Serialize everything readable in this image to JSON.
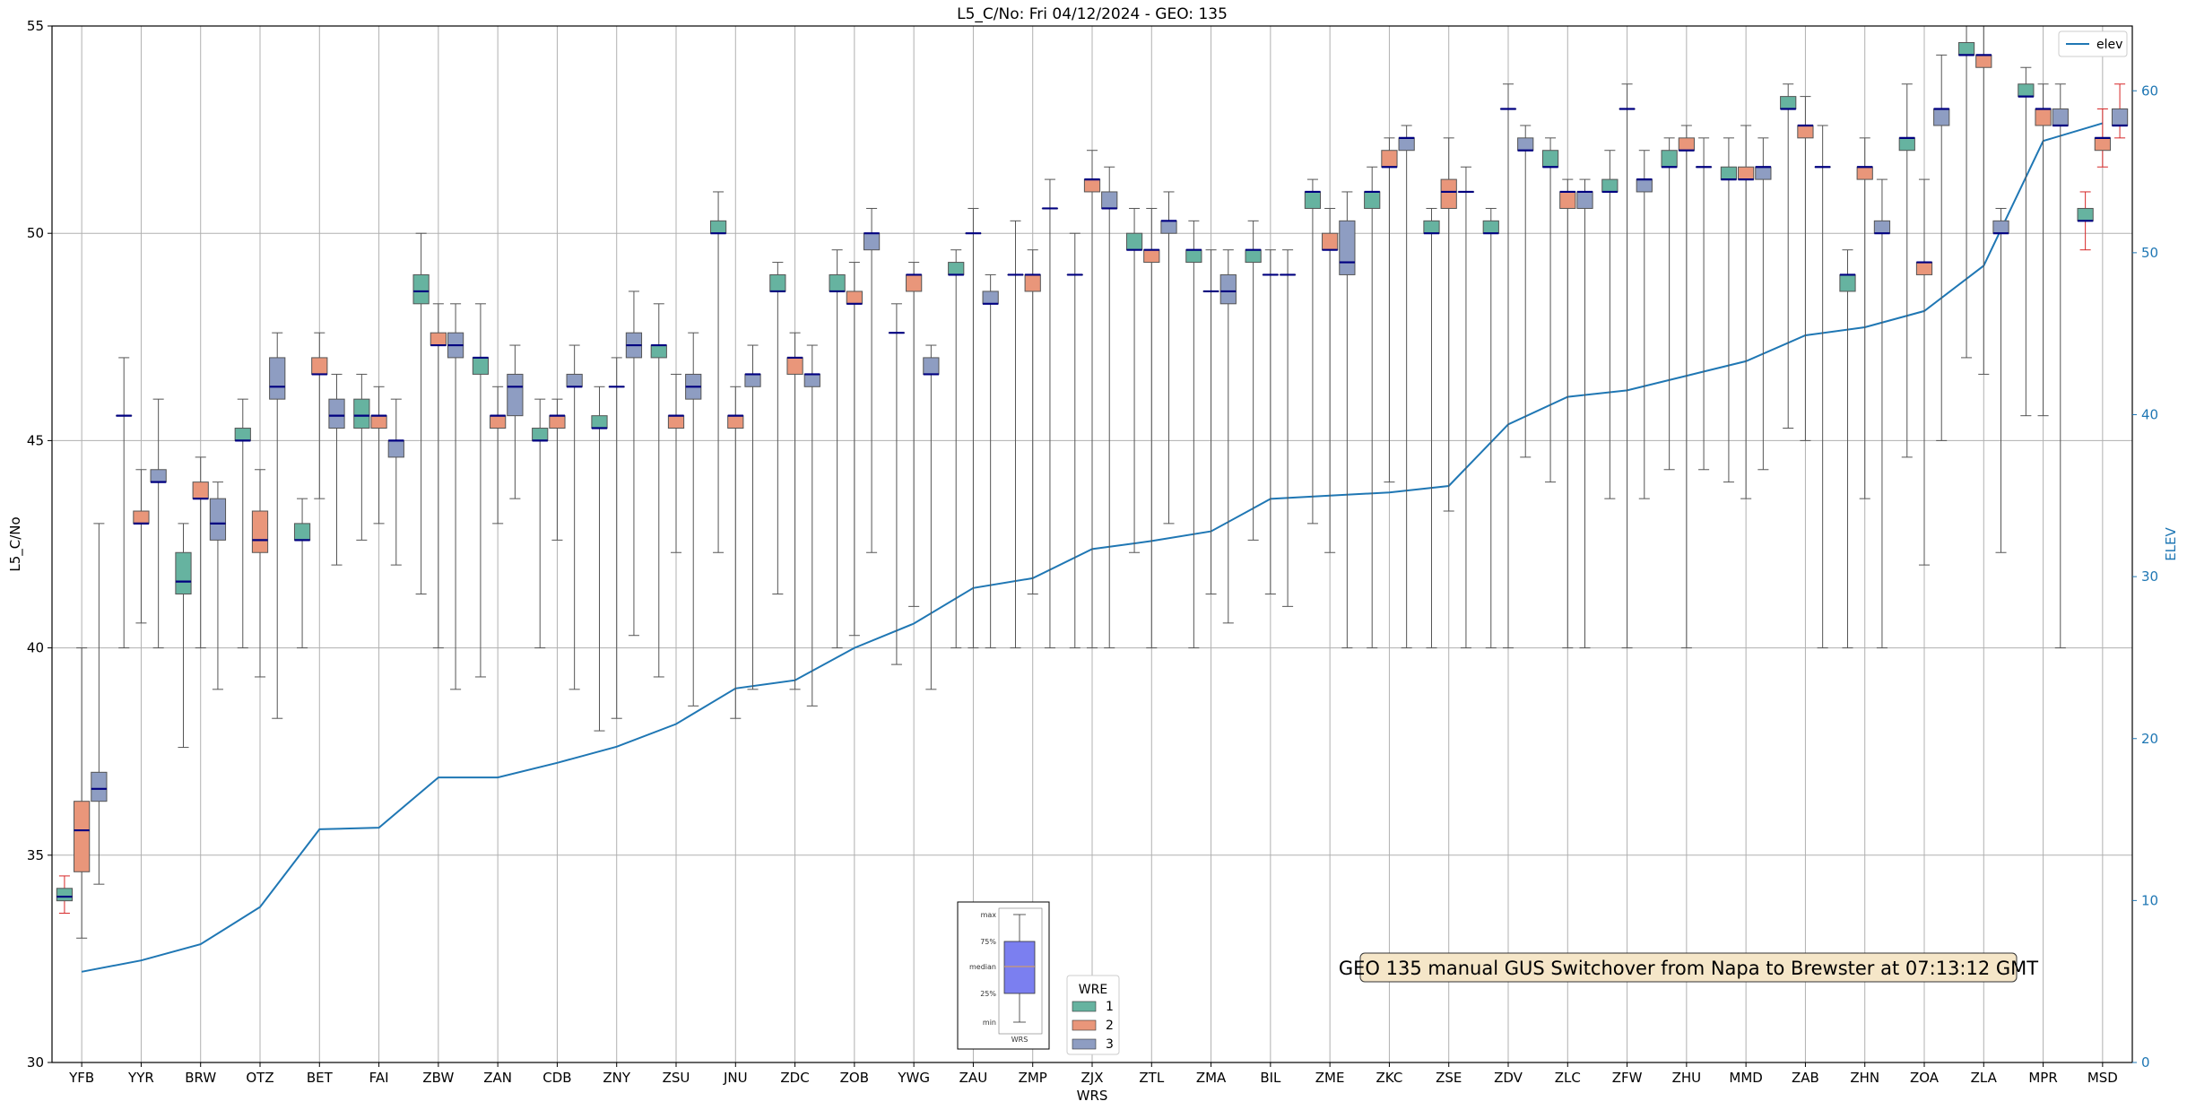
{
  "chart_data": {
    "type": "box",
    "title": "L5_C/No: Fri 04/12/2024 - GEO: 135",
    "xlabel": "WRS",
    "ylabel": "L5_C/No",
    "y2label": "ELEV",
    "ylim": [
      30,
      55
    ],
    "y2lim": [
      0,
      64
    ],
    "yticks": [
      30,
      35,
      40,
      45,
      50,
      55
    ],
    "y2ticks": [
      0,
      10,
      20,
      30,
      40,
      50,
      60
    ],
    "grid": true,
    "categories": [
      "YFB",
      "YYR",
      "BRW",
      "OTZ",
      "BET",
      "FAI",
      "ZBW",
      "ZAN",
      "CDB",
      "ZNY",
      "ZSU",
      "JNU",
      "ZDC",
      "ZOB",
      "YWG",
      "ZAU",
      "ZMP",
      "ZJX",
      "ZTL",
      "ZMA",
      "BIL",
      "ZME",
      "ZKC",
      "ZSE",
      "ZDV",
      "ZLC",
      "ZFW",
      "ZHU",
      "MMD",
      "ZAB",
      "ZHN",
      "ZOA",
      "ZLA",
      "MPR",
      "MSD"
    ],
    "wre_colors": {
      "1": "#66b3a0",
      "2": "#e9967a",
      "3": "#8e9dc2"
    },
    "boxes": [
      {
        "cat": "YFB",
        "wre": 1,
        "min": 33.6,
        "q1": 33.9,
        "median": 34.0,
        "q3": 34.2,
        "max": 34.5,
        "red_whisker": true
      },
      {
        "cat": "YFB",
        "wre": 2,
        "min": 33.0,
        "q1": 34.6,
        "median": 35.6,
        "q3": 36.3,
        "max": 40.0
      },
      {
        "cat": "YFB",
        "wre": 3,
        "min": 34.3,
        "q1": 36.3,
        "median": 36.6,
        "q3": 37.0,
        "max": 43.0
      },
      {
        "cat": "YYR",
        "wre": 1,
        "min": 40.0,
        "q1": 45.6,
        "median": 45.6,
        "q3": 45.6,
        "max": 47.0
      },
      {
        "cat": "YYR",
        "wre": 2,
        "min": 40.6,
        "q1": 43.0,
        "median": 43.0,
        "q3": 43.3,
        "max": 44.3
      },
      {
        "cat": "YYR",
        "wre": 3,
        "min": 40.0,
        "q1": 44.0,
        "median": 44.0,
        "q3": 44.3,
        "max": 46.0
      },
      {
        "cat": "BRW",
        "wre": 1,
        "min": 37.6,
        "q1": 41.3,
        "median": 41.6,
        "q3": 42.3,
        "max": 43.0
      },
      {
        "cat": "BRW",
        "wre": 2,
        "min": 40.0,
        "q1": 43.6,
        "median": 43.6,
        "q3": 44.0,
        "max": 44.6
      },
      {
        "cat": "BRW",
        "wre": 3,
        "min": 39.0,
        "q1": 42.6,
        "median": 43.0,
        "q3": 43.6,
        "max": 44.0
      },
      {
        "cat": "OTZ",
        "wre": 1,
        "min": 40.0,
        "q1": 45.0,
        "median": 45.0,
        "q3": 45.3,
        "max": 46.0
      },
      {
        "cat": "OTZ",
        "wre": 2,
        "min": 39.3,
        "q1": 42.3,
        "median": 42.6,
        "q3": 43.3,
        "max": 44.3
      },
      {
        "cat": "OTZ",
        "wre": 3,
        "min": 38.3,
        "q1": 46.0,
        "median": 46.3,
        "q3": 47.0,
        "max": 47.6
      },
      {
        "cat": "BET",
        "wre": 1,
        "min": 40.0,
        "q1": 42.6,
        "median": 42.6,
        "q3": 43.0,
        "max": 43.6
      },
      {
        "cat": "BET",
        "wre": 2,
        "min": 43.6,
        "q1": 46.6,
        "median": 46.6,
        "q3": 47.0,
        "max": 47.6
      },
      {
        "cat": "BET",
        "wre": 3,
        "min": 42.0,
        "q1": 45.3,
        "median": 45.6,
        "q3": 46.0,
        "max": 46.6
      },
      {
        "cat": "FAI",
        "wre": 1,
        "min": 42.6,
        "q1": 45.3,
        "median": 45.6,
        "q3": 46.0,
        "max": 46.6
      },
      {
        "cat": "FAI",
        "wre": 2,
        "min": 43.0,
        "q1": 45.3,
        "median": 45.6,
        "q3": 45.6,
        "max": 46.3
      },
      {
        "cat": "FAI",
        "wre": 3,
        "min": 42.0,
        "q1": 44.6,
        "median": 45.0,
        "q3": 45.0,
        "max": 46.0
      },
      {
        "cat": "ZBW",
        "wre": 1,
        "min": 41.3,
        "q1": 48.3,
        "median": 48.6,
        "q3": 49.0,
        "max": 50.0
      },
      {
        "cat": "ZBW",
        "wre": 2,
        "min": 40.0,
        "q1": 47.3,
        "median": 47.3,
        "q3": 47.6,
        "max": 48.3
      },
      {
        "cat": "ZBW",
        "wre": 3,
        "min": 39.0,
        "q1": 47.0,
        "median": 47.3,
        "q3": 47.6,
        "max": 48.3
      },
      {
        "cat": "ZAN",
        "wre": 1,
        "min": 39.3,
        "q1": 46.6,
        "median": 47.0,
        "q3": 47.0,
        "max": 48.3
      },
      {
        "cat": "ZAN",
        "wre": 2,
        "min": 43.0,
        "q1": 45.3,
        "median": 45.6,
        "q3": 45.6,
        "max": 46.3
      },
      {
        "cat": "ZAN",
        "wre": 3,
        "min": 43.6,
        "q1": 45.6,
        "median": 46.3,
        "q3": 46.6,
        "max": 47.3
      },
      {
        "cat": "CDB",
        "wre": 1,
        "min": 40.0,
        "q1": 45.0,
        "median": 45.0,
        "q3": 45.3,
        "max": 46.0
      },
      {
        "cat": "CDB",
        "wre": 2,
        "min": 42.6,
        "q1": 45.3,
        "median": 45.6,
        "q3": 45.6,
        "max": 46.0
      },
      {
        "cat": "CDB",
        "wre": 3,
        "min": 39.0,
        "q1": 46.3,
        "median": 46.3,
        "q3": 46.6,
        "max": 47.3
      },
      {
        "cat": "ZNY",
        "wre": 1,
        "min": 38.0,
        "q1": 45.3,
        "median": 45.3,
        "q3": 45.6,
        "max": 46.3
      },
      {
        "cat": "ZNY",
        "wre": 2,
        "min": 38.3,
        "q1": 46.3,
        "median": 46.3,
        "q3": 46.3,
        "max": 47.0
      },
      {
        "cat": "ZNY",
        "wre": 3,
        "min": 40.3,
        "q1": 47.0,
        "median": 47.3,
        "q3": 47.6,
        "max": 48.6
      },
      {
        "cat": "ZSU",
        "wre": 1,
        "min": 39.3,
        "q1": 47.0,
        "median": 47.3,
        "q3": 47.3,
        "max": 48.3
      },
      {
        "cat": "ZSU",
        "wre": 2,
        "min": 42.3,
        "q1": 45.3,
        "median": 45.6,
        "q3": 45.6,
        "max": 46.6
      },
      {
        "cat": "ZSU",
        "wre": 3,
        "min": 38.6,
        "q1": 46.0,
        "median": 46.3,
        "q3": 46.6,
        "max": 47.6
      },
      {
        "cat": "JNU",
        "wre": 1,
        "min": 42.3,
        "q1": 50.0,
        "median": 50.0,
        "q3": 50.3,
        "max": 51.0
      },
      {
        "cat": "JNU",
        "wre": 2,
        "min": 38.3,
        "q1": 45.3,
        "median": 45.6,
        "q3": 45.6,
        "max": 46.3
      },
      {
        "cat": "JNU",
        "wre": 3,
        "min": 39.0,
        "q1": 46.3,
        "median": 46.6,
        "q3": 46.6,
        "max": 47.3
      },
      {
        "cat": "ZDC",
        "wre": 1,
        "min": 41.3,
        "q1": 48.6,
        "median": 48.6,
        "q3": 49.0,
        "max": 49.3
      },
      {
        "cat": "ZDC",
        "wre": 2,
        "min": 39.0,
        "q1": 46.6,
        "median": 47.0,
        "q3": 47.0,
        "max": 47.6
      },
      {
        "cat": "ZDC",
        "wre": 3,
        "min": 38.6,
        "q1": 46.3,
        "median": 46.6,
        "q3": 46.6,
        "max": 47.3
      },
      {
        "cat": "ZOB",
        "wre": 1,
        "min": 40.0,
        "q1": 48.6,
        "median": 48.6,
        "q3": 49.0,
        "max": 49.6
      },
      {
        "cat": "ZOB",
        "wre": 2,
        "min": 40.3,
        "q1": 48.3,
        "median": 48.3,
        "q3": 48.6,
        "max": 49.3
      },
      {
        "cat": "ZOB",
        "wre": 3,
        "min": 42.3,
        "q1": 49.6,
        "median": 50.0,
        "q3": 50.0,
        "max": 50.6
      },
      {
        "cat": "YWG",
        "wre": 1,
        "min": 39.6,
        "q1": 47.6,
        "median": 47.6,
        "q3": 47.6,
        "max": 48.3
      },
      {
        "cat": "YWG",
        "wre": 2,
        "min": 41.0,
        "q1": 48.6,
        "median": 49.0,
        "q3": 49.0,
        "max": 49.3
      },
      {
        "cat": "YWG",
        "wre": 3,
        "min": 39.0,
        "q1": 46.6,
        "median": 46.6,
        "q3": 47.0,
        "max": 47.3
      },
      {
        "cat": "ZAU",
        "wre": 1,
        "min": 40.0,
        "q1": 49.0,
        "median": 49.0,
        "q3": 49.3,
        "max": 49.6
      },
      {
        "cat": "ZAU",
        "wre": 2,
        "min": 40.0,
        "q1": 50.0,
        "median": 50.0,
        "q3": 50.0,
        "max": 50.6
      },
      {
        "cat": "ZAU",
        "wre": 3,
        "min": 40.0,
        "q1": 48.3,
        "median": 48.3,
        "q3": 48.6,
        "max": 49.0
      },
      {
        "cat": "ZMP",
        "wre": 1,
        "min": 40.0,
        "q1": 49.0,
        "median": 49.0,
        "q3": 49.0,
        "max": 50.3
      },
      {
        "cat": "ZMP",
        "wre": 2,
        "min": 41.3,
        "q1": 48.6,
        "median": 49.0,
        "q3": 49.0,
        "max": 49.6
      },
      {
        "cat": "ZMP",
        "wre": 3,
        "min": 40.0,
        "q1": 50.6,
        "median": 50.6,
        "q3": 50.6,
        "max": 51.3
      },
      {
        "cat": "ZJX",
        "wre": 1,
        "min": 40.0,
        "q1": 49.0,
        "median": 49.0,
        "q3": 49.0,
        "max": 50.0
      },
      {
        "cat": "ZJX",
        "wre": 2,
        "min": 40.0,
        "q1": 51.0,
        "median": 51.3,
        "q3": 51.3,
        "max": 52.0
      },
      {
        "cat": "ZJX",
        "wre": 3,
        "min": 40.0,
        "q1": 50.6,
        "median": 50.6,
        "q3": 51.0,
        "max": 51.6
      },
      {
        "cat": "ZTL",
        "wre": 1,
        "min": 42.3,
        "q1": 49.6,
        "median": 49.6,
        "q3": 50.0,
        "max": 50.6
      },
      {
        "cat": "ZTL",
        "wre": 2,
        "min": 40.0,
        "q1": 49.3,
        "median": 49.6,
        "q3": 49.6,
        "max": 50.6
      },
      {
        "cat": "ZTL",
        "wre": 3,
        "min": 43.0,
        "q1": 50.0,
        "median": 50.3,
        "q3": 50.3,
        "max": 51.0
      },
      {
        "cat": "ZMA",
        "wre": 1,
        "min": 40.0,
        "q1": 49.3,
        "median": 49.6,
        "q3": 49.6,
        "max": 50.3
      },
      {
        "cat": "ZMA",
        "wre": 2,
        "min": 41.3,
        "q1": 48.6,
        "median": 48.6,
        "q3": 48.6,
        "max": 49.6
      },
      {
        "cat": "ZMA",
        "wre": 3,
        "min": 40.6,
        "q1": 48.3,
        "median": 48.6,
        "q3": 49.0,
        "max": 49.6
      },
      {
        "cat": "BIL",
        "wre": 1,
        "min": 42.6,
        "q1": 49.3,
        "median": 49.6,
        "q3": 49.6,
        "max": 50.3
      },
      {
        "cat": "BIL",
        "wre": 2,
        "min": 41.3,
        "q1": 49.0,
        "median": 49.0,
        "q3": 49.0,
        "max": 49.6
      },
      {
        "cat": "BIL",
        "wre": 3,
        "min": 41.0,
        "q1": 49.0,
        "median": 49.0,
        "q3": 49.0,
        "max": 49.6
      },
      {
        "cat": "ZME",
        "wre": 1,
        "min": 43.0,
        "q1": 50.6,
        "median": 51.0,
        "q3": 51.0,
        "max": 51.3
      },
      {
        "cat": "ZME",
        "wre": 2,
        "min": 42.3,
        "q1": 49.6,
        "median": 49.6,
        "q3": 50.0,
        "max": 50.6
      },
      {
        "cat": "ZME",
        "wre": 3,
        "min": 40.0,
        "q1": 49.0,
        "median": 49.3,
        "q3": 50.3,
        "max": 51.0
      },
      {
        "cat": "ZKC",
        "wre": 1,
        "min": 40.0,
        "q1": 50.6,
        "median": 51.0,
        "q3": 51.0,
        "max": 51.6
      },
      {
        "cat": "ZKC",
        "wre": 2,
        "min": 44.0,
        "q1": 51.6,
        "median": 51.6,
        "q3": 52.0,
        "max": 52.3
      },
      {
        "cat": "ZKC",
        "wre": 3,
        "min": 40.0,
        "q1": 52.0,
        "median": 52.3,
        "q3": 52.3,
        "max": 52.6
      },
      {
        "cat": "ZSE",
        "wre": 1,
        "min": 40.0,
        "q1": 50.0,
        "median": 50.0,
        "q3": 50.3,
        "max": 50.6
      },
      {
        "cat": "ZSE",
        "wre": 2,
        "min": 43.3,
        "q1": 50.6,
        "median": 51.0,
        "q3": 51.3,
        "max": 52.3
      },
      {
        "cat": "ZSE",
        "wre": 3,
        "min": 40.0,
        "q1": 51.0,
        "median": 51.0,
        "q3": 51.0,
        "max": 51.6
      },
      {
        "cat": "ZDV",
        "wre": 1,
        "min": 40.0,
        "q1": 50.0,
        "median": 50.0,
        "q3": 50.3,
        "max": 50.6
      },
      {
        "cat": "ZDV",
        "wre": 2,
        "min": 40.0,
        "q1": 53.0,
        "median": 53.0,
        "q3": 53.0,
        "max": 53.6
      },
      {
        "cat": "ZDV",
        "wre": 3,
        "min": 44.6,
        "q1": 52.0,
        "median": 52.0,
        "q3": 52.3,
        "max": 52.6
      },
      {
        "cat": "ZLC",
        "wre": 1,
        "min": 44.0,
        "q1": 51.6,
        "median": 51.6,
        "q3": 52.0,
        "max": 52.3
      },
      {
        "cat": "ZLC",
        "wre": 2,
        "min": 40.0,
        "q1": 50.6,
        "median": 51.0,
        "q3": 51.0,
        "max": 51.3
      },
      {
        "cat": "ZLC",
        "wre": 3,
        "min": 40.0,
        "q1": 50.6,
        "median": 51.0,
        "q3": 51.0,
        "max": 51.3
      },
      {
        "cat": "ZFW",
        "wre": 1,
        "min": 43.6,
        "q1": 51.0,
        "median": 51.0,
        "q3": 51.3,
        "max": 52.0
      },
      {
        "cat": "ZFW",
        "wre": 2,
        "min": 40.0,
        "q1": 53.0,
        "median": 53.0,
        "q3": 53.0,
        "max": 53.6
      },
      {
        "cat": "ZFW",
        "wre": 3,
        "min": 43.6,
        "q1": 51.0,
        "median": 51.3,
        "q3": 51.3,
        "max": 52.0
      },
      {
        "cat": "ZHU",
        "wre": 1,
        "min": 44.3,
        "q1": 51.6,
        "median": 51.6,
        "q3": 52.0,
        "max": 52.3
      },
      {
        "cat": "ZHU",
        "wre": 2,
        "min": 40.0,
        "q1": 52.0,
        "median": 52.0,
        "q3": 52.3,
        "max": 52.6
      },
      {
        "cat": "ZHU",
        "wre": 3,
        "min": 44.3,
        "q1": 51.6,
        "median": 51.6,
        "q3": 51.6,
        "max": 52.3
      },
      {
        "cat": "MMD",
        "wre": 1,
        "min": 44.0,
        "q1": 51.3,
        "median": 51.3,
        "q3": 51.6,
        "max": 52.3
      },
      {
        "cat": "MMD",
        "wre": 2,
        "min": 43.6,
        "q1": 51.3,
        "median": 51.3,
        "q3": 51.6,
        "max": 52.6
      },
      {
        "cat": "MMD",
        "wre": 3,
        "min": 44.3,
        "q1": 51.3,
        "median": 51.6,
        "q3": 51.6,
        "max": 52.3
      },
      {
        "cat": "ZAB",
        "wre": 1,
        "min": 45.3,
        "q1": 53.0,
        "median": 53.0,
        "q3": 53.3,
        "max": 53.6
      },
      {
        "cat": "ZAB",
        "wre": 2,
        "min": 45.0,
        "q1": 52.3,
        "median": 52.6,
        "q3": 52.6,
        "max": 53.3
      },
      {
        "cat": "ZAB",
        "wre": 3,
        "min": 40.0,
        "q1": 51.6,
        "median": 51.6,
        "q3": 51.6,
        "max": 52.6
      },
      {
        "cat": "ZHN",
        "wre": 1,
        "min": 40.0,
        "q1": 48.6,
        "median": 49.0,
        "q3": 49.0,
        "max": 49.6
      },
      {
        "cat": "ZHN",
        "wre": 2,
        "min": 43.6,
        "q1": 51.3,
        "median": 51.6,
        "q3": 51.6,
        "max": 52.3
      },
      {
        "cat": "ZHN",
        "wre": 3,
        "min": 40.0,
        "q1": 50.0,
        "median": 50.0,
        "q3": 50.3,
        "max": 51.3
      },
      {
        "cat": "ZOA",
        "wre": 1,
        "min": 44.6,
        "q1": 52.0,
        "median": 52.3,
        "q3": 52.3,
        "max": 53.6
      },
      {
        "cat": "ZOA",
        "wre": 2,
        "min": 42.0,
        "q1": 49.0,
        "median": 49.3,
        "q3": 49.3,
        "max": 51.3
      },
      {
        "cat": "ZOA",
        "wre": 3,
        "min": 45.0,
        "q1": 52.6,
        "median": 53.0,
        "q3": 53.0,
        "max": 54.3
      },
      {
        "cat": "ZLA",
        "wre": 1,
        "min": 47.0,
        "q1": 54.3,
        "median": 54.3,
        "q3": 54.6,
        "max": 55.0
      },
      {
        "cat": "ZLA",
        "wre": 2,
        "min": 46.6,
        "q1": 54.0,
        "median": 54.3,
        "q3": 54.3,
        "max": 55.0
      },
      {
        "cat": "ZLA",
        "wre": 3,
        "min": 42.3,
        "q1": 50.0,
        "median": 50.0,
        "q3": 50.3,
        "max": 50.6
      },
      {
        "cat": "MPR",
        "wre": 1,
        "min": 45.6,
        "q1": 53.3,
        "median": 53.3,
        "q3": 53.6,
        "max": 54.0
      },
      {
        "cat": "MPR",
        "wre": 2,
        "min": 45.6,
        "q1": 52.6,
        "median": 53.0,
        "q3": 53.0,
        "max": 53.6
      },
      {
        "cat": "MPR",
        "wre": 3,
        "min": 40.0,
        "q1": 52.6,
        "median": 52.6,
        "q3": 53.0,
        "max": 53.6
      },
      {
        "cat": "MSD",
        "wre": 1,
        "min": 49.6,
        "q1": 50.3,
        "median": 50.3,
        "q3": 50.6,
        "max": 51.0,
        "red_whisker": true
      },
      {
        "cat": "MSD",
        "wre": 2,
        "min": 51.6,
        "q1": 52.0,
        "median": 52.3,
        "q3": 52.3,
        "max": 53.0,
        "red_whisker": true
      },
      {
        "cat": "MSD",
        "wre": 3,
        "min": 52.3,
        "q1": 52.6,
        "median": 52.6,
        "q3": 53.0,
        "max": 53.6,
        "red_whisker": true
      }
    ],
    "elev_series": {
      "name": "elev",
      "color": "#1f77b4",
      "values": [
        5.6,
        6.3,
        7.3,
        9.6,
        14.4,
        14.5,
        17.6,
        17.6,
        18.5,
        19.5,
        20.9,
        23.1,
        23.6,
        25.6,
        27.1,
        29.3,
        29.9,
        31.7,
        32.2,
        32.8,
        34.8,
        35.0,
        35.2,
        35.6,
        39.4,
        41.1,
        41.5,
        42.4,
        43.3,
        44.9,
        45.4,
        46.4,
        49.2,
        56.9,
        58.0
      ]
    },
    "legend_wre": {
      "title": "WRE",
      "entries": [
        "1",
        "2",
        "3"
      ]
    },
    "legend_elev": {
      "label": "elev",
      "placement": "top-right"
    },
    "annotation": "GEO 135 manual GUS Switchover from Napa to Brewster at 07:13:12 GMT",
    "inset_key": {
      "labels": [
        "max",
        "75%",
        "median",
        "25%",
        "min"
      ],
      "xlabel": "WRS"
    }
  }
}
